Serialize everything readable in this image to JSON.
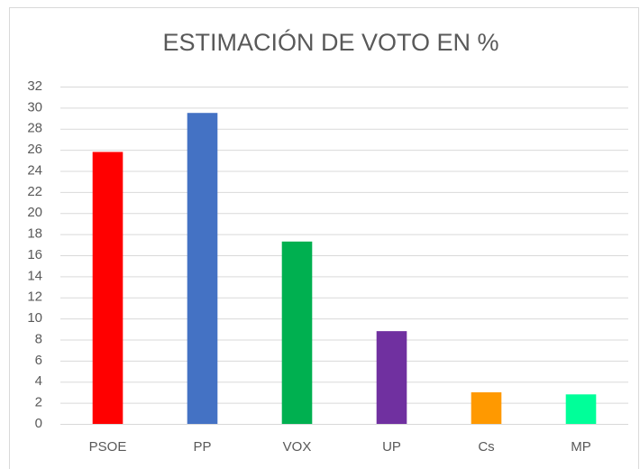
{
  "chart_data": {
    "type": "bar",
    "title": "ESTIMACIÓN DE VOTO EN %",
    "categories": [
      "PSOE",
      "PP",
      "VOX",
      "UP",
      "Cs",
      "MP"
    ],
    "values": [
      25.8,
      29.5,
      17.3,
      8.8,
      3.0,
      2.8
    ],
    "colors": [
      "#ff0000",
      "#4472c4",
      "#00b050",
      "#7030a0",
      "#ff9900",
      "#00ff99"
    ],
    "ylim": [
      0,
      32
    ],
    "yticks": [
      0,
      2,
      4,
      6,
      8,
      10,
      12,
      14,
      16,
      18,
      20,
      22,
      24,
      26,
      28,
      30,
      32
    ],
    "grid": true
  }
}
